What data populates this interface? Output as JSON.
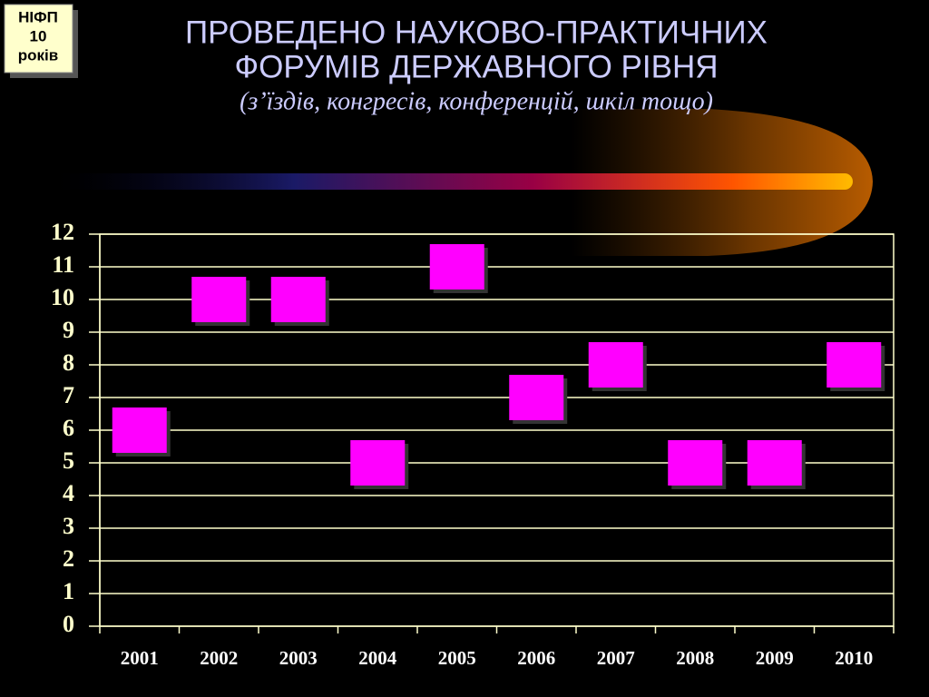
{
  "badge": {
    "lines": [
      "НІФП",
      "10",
      "років"
    ]
  },
  "chart_data": {
    "type": "scatter",
    "title": [
      "ПРОВЕДЕНО НАУКОВО-ПРАКТИЧНИХ",
      "ФОРУМІВ ДЕРЖАВНОГО РІВНЯ"
    ],
    "subtitle": "(з’їздів, конгресів, конференцій, шкіл тощо)",
    "categories": [
      "2001",
      "2002",
      "2003",
      "2004",
      "2005",
      "2006",
      "2007",
      "2008",
      "2009",
      "2010"
    ],
    "values": [
      6,
      10,
      10,
      5,
      11,
      7,
      8,
      5,
      5,
      8
    ],
    "color": "#ff00ff",
    "marker": "square",
    "ylim": [
      0,
      12
    ],
    "yticks": [
      0,
      1,
      2,
      3,
      4,
      5,
      6,
      7,
      8,
      9,
      10,
      11,
      12
    ],
    "grid": true
  }
}
